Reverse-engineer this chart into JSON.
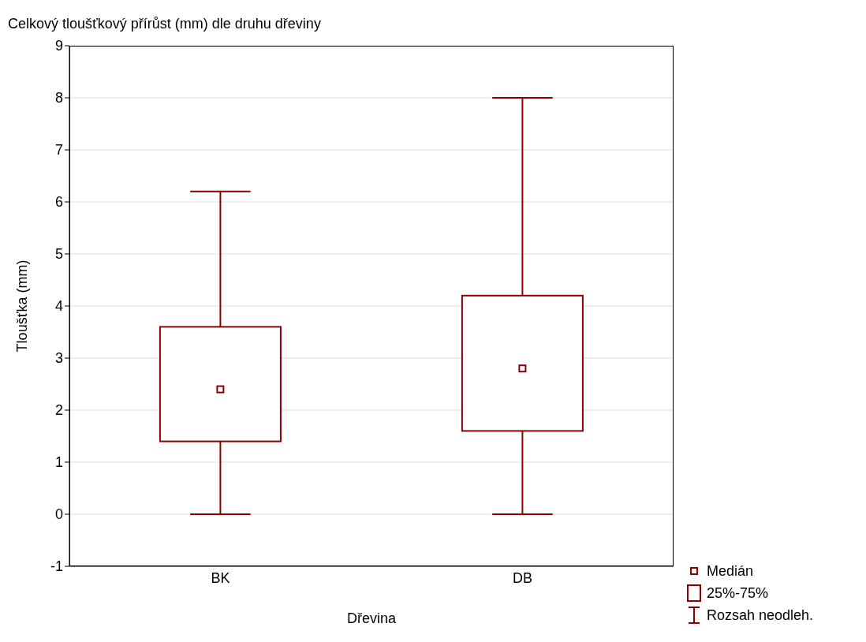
{
  "chart_data": {
    "type": "box",
    "title": "Celkový tloušťkový přírůst (mm) dle druhu dřeviny",
    "xlabel": "Dřevina",
    "ylabel": "Tloušťka (mm)",
    "categories": [
      "BK",
      "DB"
    ],
    "boxes": [
      {
        "low": 0,
        "q1": 1.4,
        "median": 2.4,
        "q3": 3.6,
        "high": 6.2
      },
      {
        "low": 0,
        "q1": 1.6,
        "median": 2.8,
        "q3": 4.2,
        "high": 8
      }
    ],
    "color": "#8b0000",
    "ylim": [
      -1,
      9
    ],
    "yticks": [
      -1,
      0,
      1,
      2,
      3,
      4,
      5,
      6,
      7,
      8,
      9
    ],
    "grid": "y",
    "annotations": [
      "Medián",
      "25%-75%",
      "Rozsah neodleh."
    ]
  }
}
